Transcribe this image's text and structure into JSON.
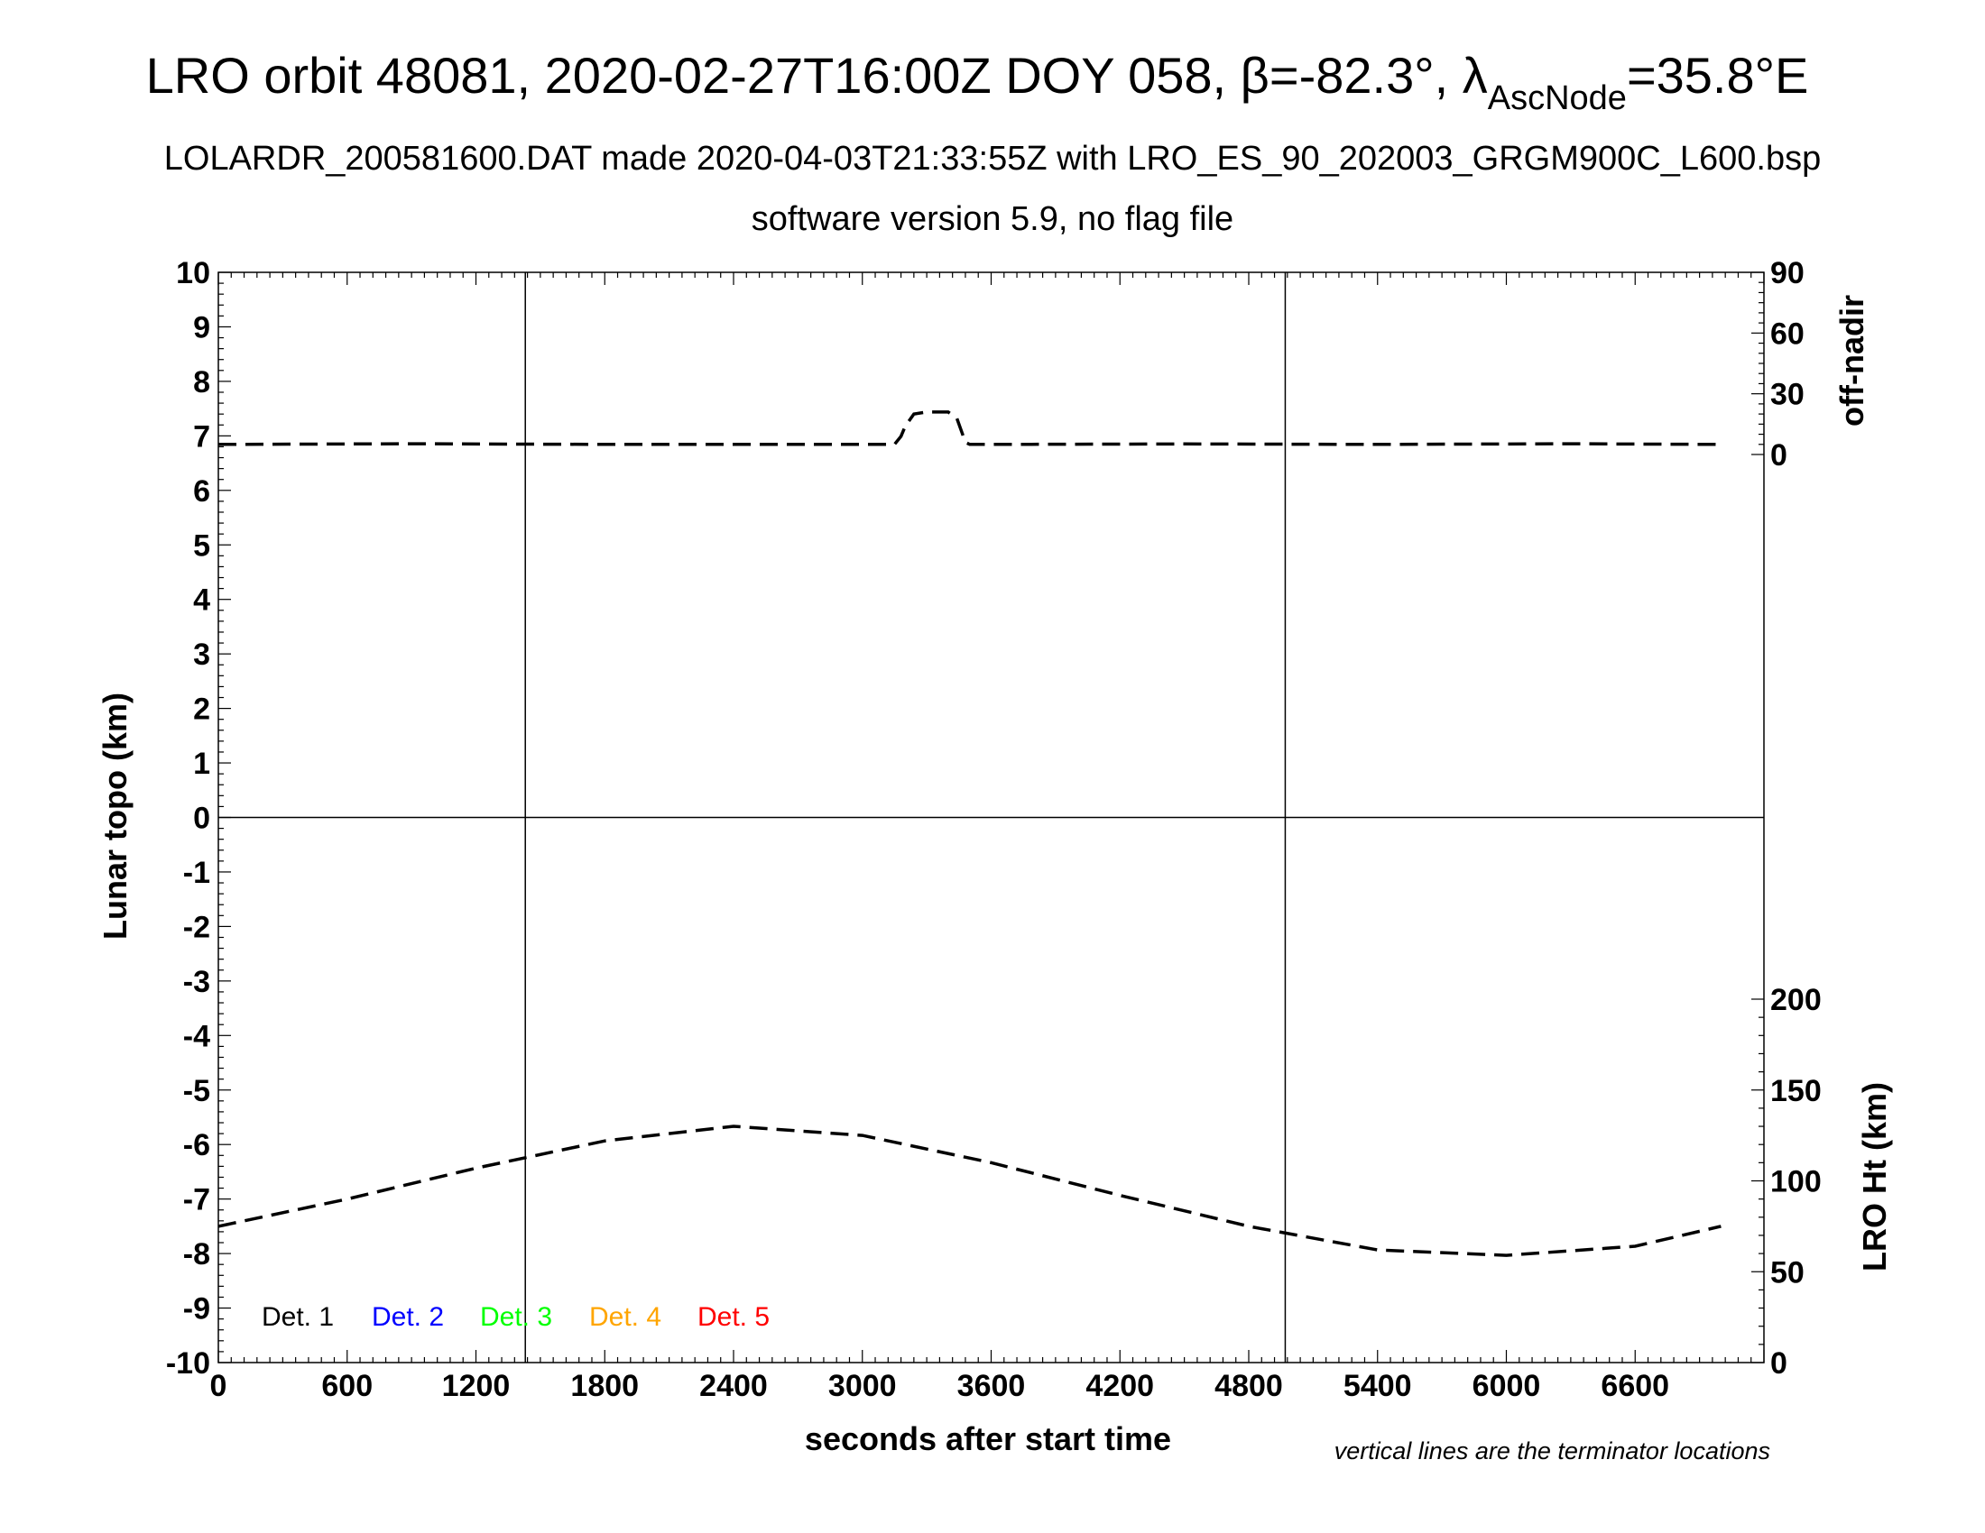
{
  "chart_data": {
    "type": "line",
    "title_main": "LRO orbit 48081, 2020-02-27T16:00Z DOY 058, β=-82.3°, λ",
    "title_sub": "AscNode",
    "title_end": "=35.8°E",
    "subtitle": "LOLARDR_200581600.DAT made 2020-04-03T21:33:55Z with LRO_ES_90_202003_GRGM900C_L600.bsp",
    "subtitle2": "software version 5.9, no flag file",
    "xlabel": "seconds after start time",
    "ylabel_left": "Lunar topo (km)",
    "ylabel_right_top": "off-nadir",
    "ylabel_right_bottom": "LRO Ht (km)",
    "note": "vertical lines are the terminator locations",
    "xlim": [
      0,
      7200
    ],
    "ylim": [
      -10,
      10
    ],
    "x_ticks": [
      "0",
      "600",
      "1200",
      "1800",
      "2400",
      "3000",
      "3600",
      "4200",
      "4800",
      "5400",
      "6000",
      "6600"
    ],
    "x_tick_values": [
      0,
      600,
      1200,
      1800,
      2400,
      3000,
      3600,
      4200,
      4800,
      5400,
      6000,
      6600
    ],
    "y_ticks": [
      "10",
      "9",
      "8",
      "7",
      "6",
      "5",
      "4",
      "3",
      "2",
      "1",
      "0",
      "-1",
      "-2",
      "-3",
      "-4",
      "-5",
      "-6",
      "-7",
      "-8",
      "-9",
      "-10"
    ],
    "y_tick_values": [
      10,
      9,
      8,
      7,
      6,
      5,
      4,
      3,
      2,
      1,
      0,
      -1,
      -2,
      -3,
      -4,
      -5,
      -6,
      -7,
      -8,
      -9,
      -10
    ],
    "right_top_ticks": [
      "90",
      "60",
      "30",
      "0"
    ],
    "right_top_tick_values": [
      90,
      60,
      30,
      0
    ],
    "right_top_range": [
      0,
      90
    ],
    "right_bottom_ticks": [
      "200",
      "150",
      "100",
      "50",
      "0"
    ],
    "right_bottom_tick_values": [
      200,
      150,
      100,
      50,
      0
    ],
    "right_bottom_range": [
      0,
      200
    ],
    "terminator_lines_x": [
      1430,
      4970
    ],
    "grid": false,
    "legend_position": "bottom-left",
    "legend": [
      {
        "label": "Det. 1",
        "color": "#000000"
      },
      {
        "label": "Det. 2",
        "color": "#0000ff"
      },
      {
        "label": "Det. 3",
        "color": "#00ff00"
      },
      {
        "label": "Det. 4",
        "color": "#ffa500"
      },
      {
        "label": "Det. 5",
        "color": "#ff0000"
      }
    ],
    "series": [
      {
        "axis": "off-nadir",
        "style": "dashed",
        "color": "#000000",
        "x": [
          0,
          900,
          1800,
          2700,
          3150,
          3180,
          3200,
          3240,
          3300,
          3400,
          3440,
          3480,
          3500,
          3600,
          4500,
          5400,
          6300,
          7000
        ],
        "values": [
          5,
          5.3,
          5,
          5,
          5,
          9,
          14,
          20,
          21,
          21,
          18,
          6,
          5,
          5,
          5.2,
          5,
          5.3,
          5
        ]
      },
      {
        "axis": "LRO Ht",
        "style": "dashed",
        "color": "#000000",
        "x": [
          0,
          600,
          1200,
          1800,
          2400,
          3000,
          3600,
          4200,
          4800,
          5400,
          6000,
          6600,
          7000
        ],
        "values": [
          75,
          90,
          107,
          122,
          130,
          125,
          110,
          92,
          75,
          62,
          59,
          64,
          75
        ]
      }
    ]
  }
}
